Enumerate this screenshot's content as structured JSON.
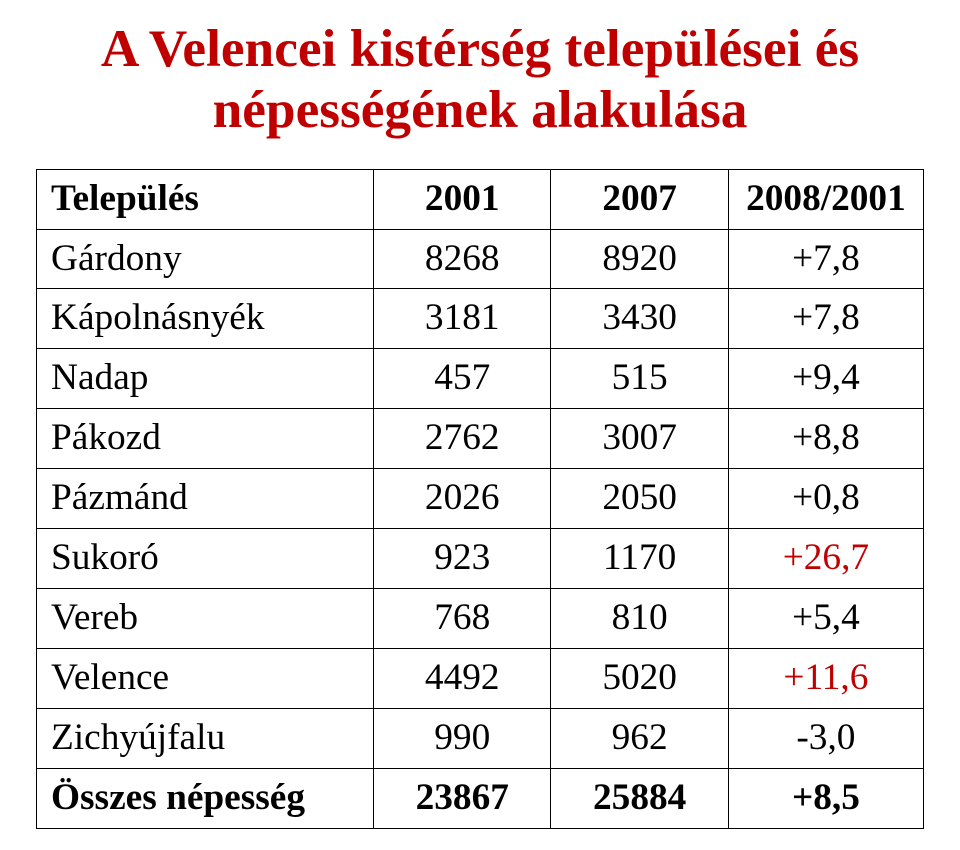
{
  "title": {
    "line1": "A Velencei kistérség települései és",
    "line2": "népességének alakulása",
    "color": "#c00000",
    "fontsize_pt": 40
  },
  "table": {
    "header_color": "#000000",
    "body_text_color": "#000000",
    "highlight_color": "#c00000",
    "border_color": "#000000",
    "header_fontsize_pt": 28,
    "cell_fontsize_pt": 28,
    "columns": [
      "Település",
      "2001",
      "2007",
      "2008/2001"
    ],
    "column_align": [
      "left",
      "center",
      "center",
      "center"
    ],
    "rows": [
      {
        "name": "Gárdony",
        "y2001": "8268",
        "y2007": "8920",
        "change": "+7,8",
        "highlight": false,
        "bold": false
      },
      {
        "name": "Kápolnásnyék",
        "y2001": "3181",
        "y2007": "3430",
        "change": "+7,8",
        "highlight": false,
        "bold": false
      },
      {
        "name": "Nadap",
        "y2001": "457",
        "y2007": "515",
        "change": "+9,4",
        "highlight": false,
        "bold": false
      },
      {
        "name": "Pákozd",
        "y2001": "2762",
        "y2007": "3007",
        "change": "+8,8",
        "highlight": false,
        "bold": false
      },
      {
        "name": "Pázmánd",
        "y2001": "2026",
        "y2007": "2050",
        "change": "+0,8",
        "highlight": false,
        "bold": false
      },
      {
        "name": "Sukoró",
        "y2001": "923",
        "y2007": "1170",
        "change": "+26,7",
        "highlight": true,
        "bold": false
      },
      {
        "name": "Vereb",
        "y2001": "768",
        "y2007": "810",
        "change": "+5,4",
        "highlight": false,
        "bold": false
      },
      {
        "name": "Velence",
        "y2001": "4492",
        "y2007": "5020",
        "change": "+11,6",
        "highlight": true,
        "bold": false
      },
      {
        "name": "Zichyújfalu",
        "y2001": "990",
        "y2007": "962",
        "change": "-3,0",
        "highlight": false,
        "bold": false
      },
      {
        "name": "Összes népesség",
        "y2001": "23867",
        "y2007": "25884",
        "change": "+8,5",
        "highlight": false,
        "bold": true
      }
    ]
  }
}
